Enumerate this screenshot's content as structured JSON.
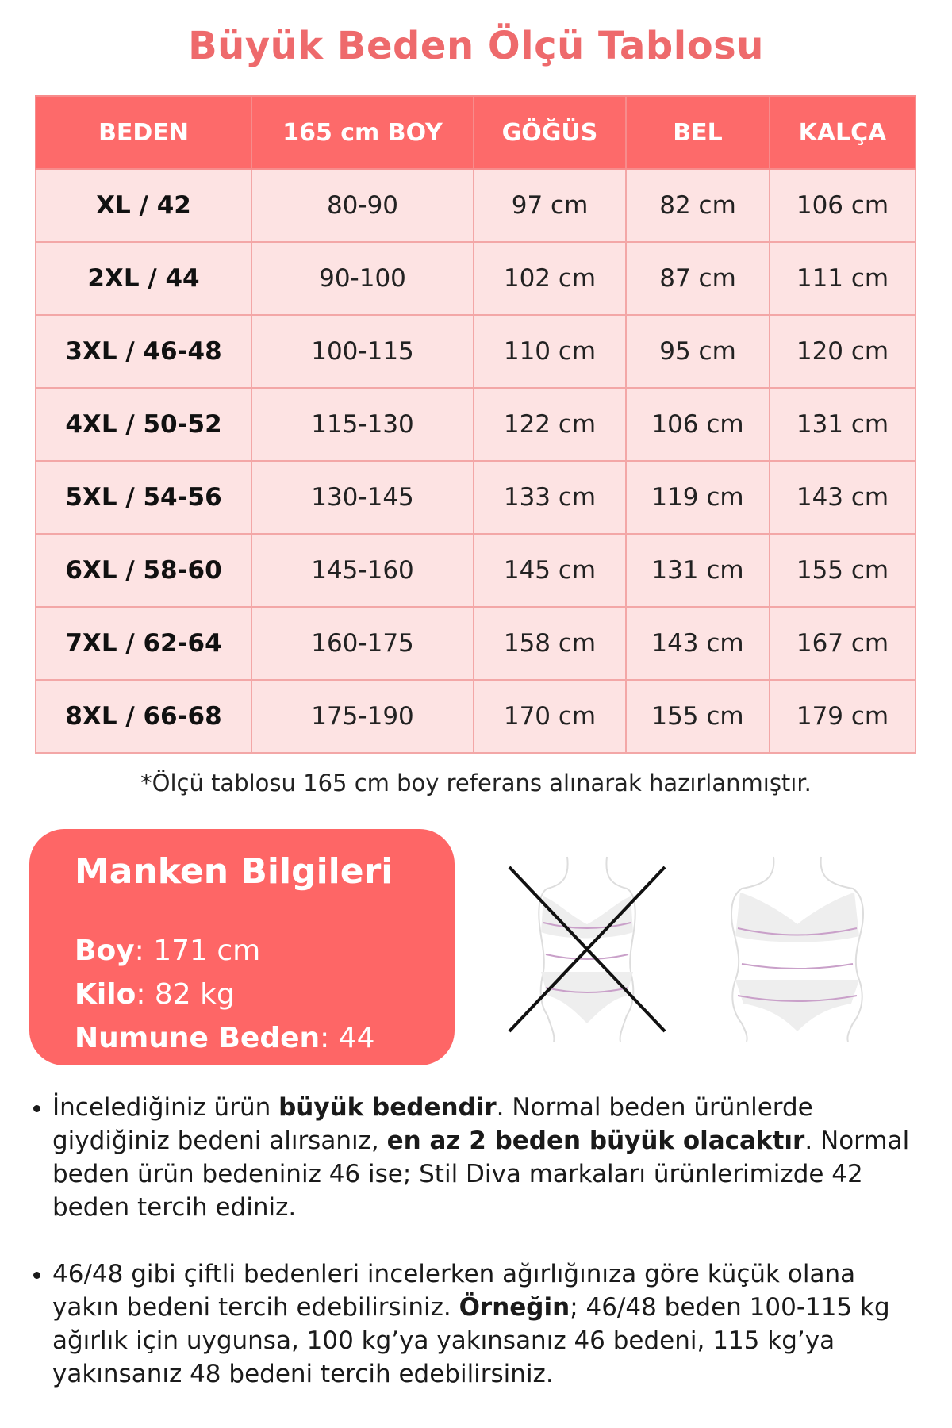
{
  "title": "Büyük Beden Ölçü Tablosu",
  "table": {
    "headers": [
      "BEDEN",
      "165 cm BOY",
      "GÖĞÜS",
      "BEL",
      "KALÇA"
    ],
    "rows": [
      [
        "XL / 42",
        "80-90",
        "97 cm",
        "82 cm",
        "106 cm"
      ],
      [
        "2XL / 44",
        "90-100",
        "102 cm",
        "87 cm",
        "111 cm"
      ],
      [
        "3XL / 46-48",
        "100-115",
        "110 cm",
        "95 cm",
        "120 cm"
      ],
      [
        "4XL / 50-52",
        "115-130",
        "122 cm",
        "106 cm",
        "131 cm"
      ],
      [
        "5XL / 54-56",
        "130-145",
        "133 cm",
        "119 cm",
        "143 cm"
      ],
      [
        "6XL / 58-60",
        "145-160",
        "145 cm",
        "131 cm",
        "155 cm"
      ],
      [
        "7XL / 62-64",
        "160-175",
        "158 cm",
        "143 cm",
        "167 cm"
      ],
      [
        "8XL / 66-68",
        "175-190",
        "170 cm",
        "155 cm",
        "179 cm"
      ]
    ]
  },
  "note": "*Ölçü tablosu 165 cm boy referans alınarak hazırlanmıştır.",
  "model": {
    "title": "Manken Bilgileri",
    "lines": [
      {
        "label": "Boy",
        "value": ": 171 cm"
      },
      {
        "label": "Kilo",
        "value": ": 82 kg"
      },
      {
        "label": "Numune Beden",
        "value": ": 44"
      }
    ]
  },
  "figures": {
    "left": "body-outline-crossed-icon",
    "right": "body-outline-icon"
  },
  "bullets": [
    [
      {
        "t": "İncelediğiniz ürün ",
        "b": false
      },
      {
        "t": "büyük bedendir",
        "b": true
      },
      {
        "t": ". Normal beden ürünlerde giydiğiniz bedeni alırsanız, ",
        "b": false
      },
      {
        "t": "en az 2 beden büyük olacaktır",
        "b": true
      },
      {
        "t": ". Normal beden ürün bedeniniz 46 ise; Stil Diva markaları ürünlerimizde 42 beden tercih ediniz.",
        "b": false
      }
    ],
    [
      {
        "t": "46/48 gibi çiftli bedenleri incelerken ağırlığınıza göre küçük olana yakın bedeni tercih edebilirsiniz. ",
        "b": false
      },
      {
        "t": "Örneğin",
        "b": true
      },
      {
        "t": "; 46/48 beden 100-115 kg ağırlık için uygunsa, 100 kg’ya yakınsanız 46 bedeni, 115 kg’ya yakınsanız 48 bedeni tercih edebilirsiniz.",
        "b": false
      }
    ]
  ],
  "colors": {
    "accent": "#fe6666",
    "title": "#ee6a6c",
    "row_bg": "#fde3e3",
    "border": "#f3a7a7"
  }
}
